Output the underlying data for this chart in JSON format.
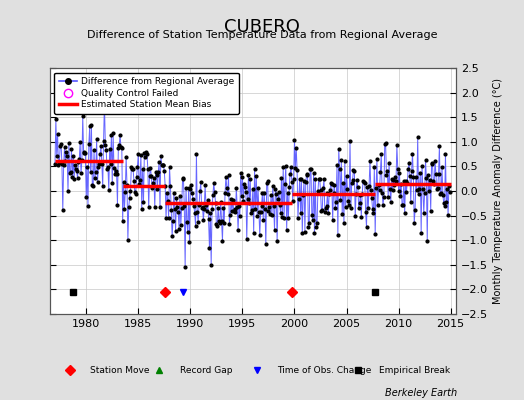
{
  "title": "CUBERO",
  "subtitle": "Difference of Station Temperature Data from Regional Average",
  "ylabel_right": "Monthly Temperature Anomaly Difference (°C)",
  "xlim": [
    1976.5,
    2015.5
  ],
  "ylim": [
    -2.5,
    2.5
  ],
  "xticks": [
    1980,
    1985,
    1990,
    1995,
    2000,
    2005,
    2010,
    2015
  ],
  "yticks": [
    -2.5,
    -2,
    -1.5,
    -1,
    -0.5,
    0,
    0.5,
    1,
    1.5,
    2,
    2.5
  ],
  "background_color": "#e0e0e0",
  "plot_bg_color": "#ffffff",
  "grid_color": "#c8c8c8",
  "line_color": "#5555ff",
  "bias_color": "#ff0000",
  "marker_color": "#000000",
  "station_moves": [
    1987.6,
    1999.8
  ],
  "empirical_breaks": [
    1978.7,
    2007.7
  ],
  "obs_changes": [
    1989.3
  ],
  "bias_segments": [
    {
      "xstart": 1977.0,
      "xend": 1983.5,
      "value": 0.6
    },
    {
      "xstart": 1983.5,
      "xend": 1987.6,
      "value": 0.1
    },
    {
      "xstart": 1987.6,
      "xend": 1999.8,
      "value": -0.25
    },
    {
      "xstart": 1999.8,
      "xend": 2007.7,
      "value": -0.06
    },
    {
      "xstart": 2007.7,
      "xend": 2015.0,
      "value": 0.14
    }
  ],
  "watermark": "Berkeley Earth",
  "seed": 42
}
